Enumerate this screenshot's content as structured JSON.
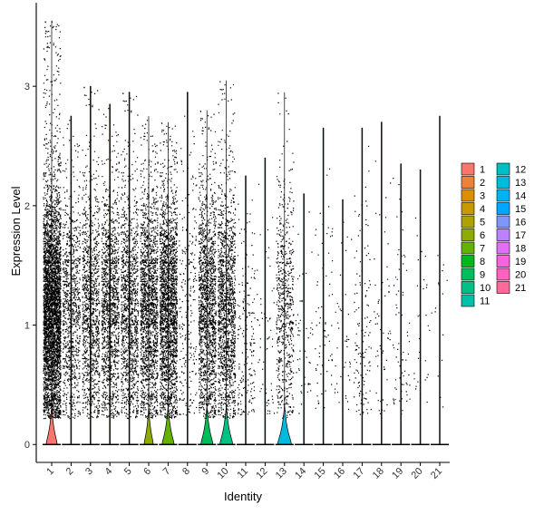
{
  "chart_data": {
    "type": "violin",
    "xlabel": "Identity",
    "ylabel": "Expression Level",
    "categories": [
      "1",
      "2",
      "3",
      "4",
      "5",
      "6",
      "7",
      "8",
      "9",
      "10",
      "11",
      "12",
      "13",
      "14",
      "15",
      "16",
      "17",
      "18",
      "19",
      "20",
      "21"
    ],
    "yticks": [
      0,
      1,
      2,
      3
    ],
    "ylim": [
      -0.15,
      3.7
    ],
    "grid": false,
    "legend": {
      "position": "right",
      "columns": 2
    },
    "colors": [
      "#F8766D",
      "#EC8239",
      "#DB8E00",
      "#C79800",
      "#AEA200",
      "#8FAA00",
      "#64B200",
      "#00B81B",
      "#00BD5C",
      "#00C085",
      "#00C1A7",
      "#00BFC4",
      "#00BADE",
      "#00B2F3",
      "#00A6FF",
      "#7F96FF",
      "#BC81FF",
      "#E26EF7",
      "#F863DF",
      "#FF62BF",
      "#FF6A9A"
    ],
    "violins": [
      {
        "category": "1",
        "max": 3.55,
        "nonzero_cells": 4200,
        "zero_peak_width": 0.6
      },
      {
        "category": "2",
        "max": 2.75,
        "nonzero_cells": 900,
        "zero_peak_width": 0.0
      },
      {
        "category": "3",
        "max": 3.0,
        "nonzero_cells": 1100,
        "zero_peak_width": 0.0
      },
      {
        "category": "4",
        "max": 2.85,
        "nonzero_cells": 1300,
        "zero_peak_width": 0.0
      },
      {
        "category": "5",
        "max": 2.95,
        "nonzero_cells": 1200,
        "zero_peak_width": 0.0
      },
      {
        "category": "6",
        "max": 2.75,
        "nonzero_cells": 1700,
        "zero_peak_width": 0.5
      },
      {
        "category": "7",
        "max": 2.7,
        "nonzero_cells": 2200,
        "zero_peak_width": 0.65
      },
      {
        "category": "8",
        "max": 2.95,
        "nonzero_cells": 250,
        "zero_peak_width": 0.0
      },
      {
        "category": "9",
        "max": 2.8,
        "nonzero_cells": 1600,
        "zero_peak_width": 0.65
      },
      {
        "category": "10",
        "max": 3.05,
        "nonzero_cells": 1500,
        "zero_peak_width": 0.7
      },
      {
        "category": "11",
        "max": 2.25,
        "nonzero_cells": 200,
        "zero_peak_width": 0.0
      },
      {
        "category": "12",
        "max": 2.4,
        "nonzero_cells": 60,
        "zero_peak_width": 0.0
      },
      {
        "category": "13",
        "max": 2.95,
        "nonzero_cells": 650,
        "zero_peak_width": 0.75
      },
      {
        "category": "14",
        "max": 2.1,
        "nonzero_cells": 50,
        "zero_peak_width": 0.0
      },
      {
        "category": "15",
        "max": 2.65,
        "nonzero_cells": 70,
        "zero_peak_width": 0.0
      },
      {
        "category": "16",
        "max": 2.05,
        "nonzero_cells": 40,
        "zero_peak_width": 0.0
      },
      {
        "category": "17",
        "max": 2.65,
        "nonzero_cells": 130,
        "zero_peak_width": 0.0
      },
      {
        "category": "18",
        "max": 2.7,
        "nonzero_cells": 60,
        "zero_peak_width": 0.0
      },
      {
        "category": "19",
        "max": 2.35,
        "nonzero_cells": 70,
        "zero_peak_width": 0.0
      },
      {
        "category": "20",
        "max": 2.3,
        "nonzero_cells": 30,
        "zero_peak_width": 0.0
      },
      {
        "category": "21",
        "max": 2.75,
        "nonzero_cells": 15,
        "zero_peak_width": 0.0
      }
    ]
  }
}
